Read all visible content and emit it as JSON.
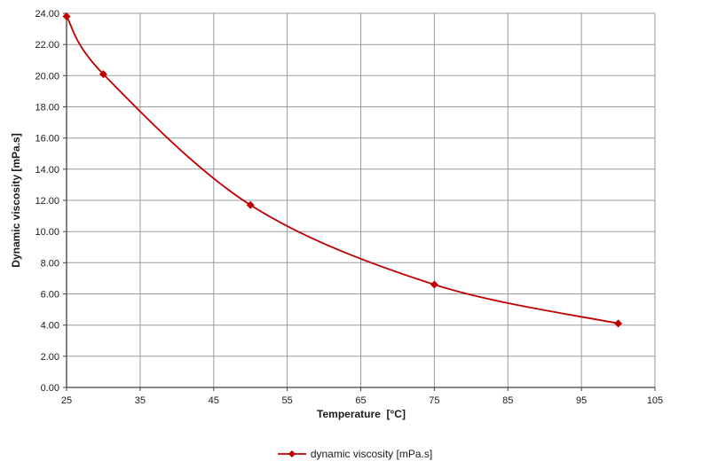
{
  "chart_data": {
    "type": "line",
    "title": "",
    "xlabel": "Temperature  [°C]",
    "ylabel": "Dynamic viscosity [mPa.s]",
    "x": [
      25,
      30,
      50,
      75,
      100
    ],
    "series": [
      {
        "name": "dynamic viscosity [mPa.s]",
        "values": [
          23.8,
          20.1,
          11.7,
          6.6,
          4.1
        ],
        "color": "#c00000",
        "marker": "diamond"
      }
    ],
    "xlim": [
      25,
      105
    ],
    "xticks": [
      25,
      35,
      45,
      55,
      65,
      75,
      85,
      95,
      105
    ],
    "ylim": [
      0,
      24
    ],
    "yticks": [
      0,
      2,
      4,
      6,
      8,
      10,
      12,
      14,
      16,
      18,
      20,
      22,
      24
    ],
    "ytick_decimals": 2,
    "grid": true,
    "legend_position": "bottom"
  },
  "axes": {
    "x_label": "Temperature  [°C]",
    "y_label": "Dynamic viscosity [mPa.s]"
  },
  "legend": {
    "label": "dynamic viscosity [mPa.s]"
  },
  "colors": {
    "series": "#c00000",
    "grid": "#9a9a9a",
    "axis": "#404040",
    "text": "#1a1a1a",
    "background": "#ffffff"
  }
}
